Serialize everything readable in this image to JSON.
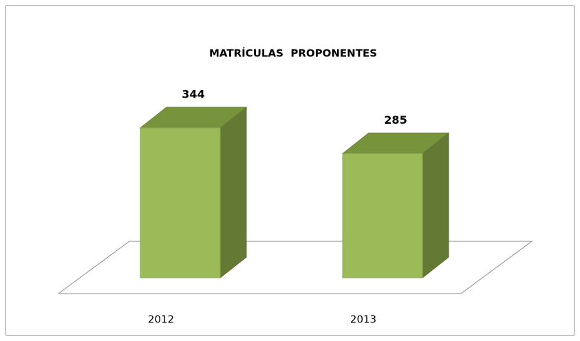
{
  "chart_data": {
    "type": "bar3d",
    "title": "MATRÍCULAS  PROPONENTES",
    "categories": [
      "2012",
      "2013"
    ],
    "values": [
      344,
      285
    ],
    "color": "#9bbb59"
  }
}
